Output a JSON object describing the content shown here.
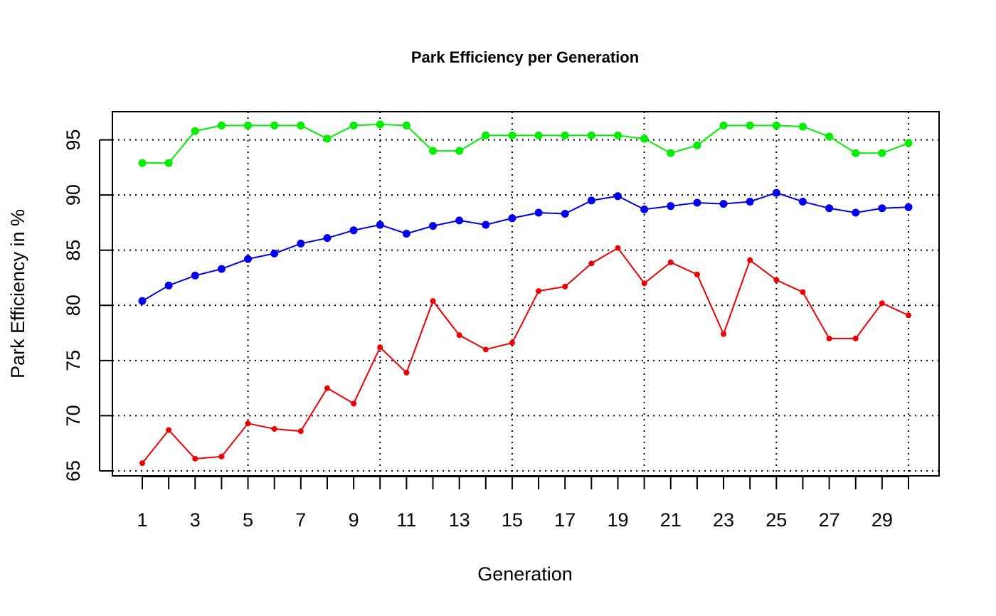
{
  "chart_data": {
    "type": "line",
    "title": "Park Efficiency per Generation",
    "xlabel": "Generation",
    "ylabel": "Park Efficiency in %",
    "xlim": [
      1,
      30
    ],
    "ylim": [
      65,
      97
    ],
    "x": [
      1,
      2,
      3,
      4,
      5,
      6,
      7,
      8,
      9,
      10,
      11,
      12,
      13,
      14,
      15,
      16,
      17,
      18,
      19,
      20,
      21,
      22,
      23,
      24,
      25,
      26,
      27,
      28,
      29,
      30
    ],
    "x_tick_values": [
      1,
      2,
      3,
      4,
      5,
      6,
      7,
      8,
      9,
      10,
      11,
      12,
      13,
      14,
      15,
      16,
      17,
      18,
      19,
      20,
      21,
      22,
      23,
      24,
      25,
      26,
      27,
      28,
      29,
      30
    ],
    "x_tick_labels": [
      "1",
      "3",
      "5",
      "7",
      "9",
      "11",
      "13",
      "15",
      "17",
      "19",
      "21",
      "23",
      "25",
      "27",
      "29"
    ],
    "x_tick_label_values": [
      1,
      3,
      5,
      7,
      9,
      11,
      13,
      15,
      17,
      19,
      21,
      23,
      25,
      27,
      29
    ],
    "y_ticks": [
      65,
      70,
      75,
      80,
      85,
      90,
      95
    ],
    "grid": true,
    "grid_x": [
      5,
      10,
      15,
      20,
      25,
      30
    ],
    "grid_y": [
      65,
      70,
      75,
      80,
      85,
      90,
      95
    ],
    "series": [
      {
        "color": "#00ee00",
        "values": [
          92.9,
          92.9,
          95.8,
          96.3,
          96.3,
          96.3,
          96.3,
          95.1,
          96.3,
          96.4,
          96.3,
          94.0,
          94.0,
          95.4,
          95.4,
          95.4,
          95.4,
          95.4,
          95.4,
          95.1,
          93.8,
          94.5,
          96.3,
          96.3,
          96.3,
          96.2,
          95.3,
          93.8,
          93.8,
          94.7
        ]
      },
      {
        "color": "#0000ee",
        "values": [
          80.4,
          81.8,
          82.7,
          83.3,
          84.2,
          84.7,
          85.6,
          86.1,
          86.8,
          87.3,
          86.5,
          87.2,
          87.7,
          87.3,
          87.9,
          88.4,
          88.3,
          89.5,
          89.9,
          88.7,
          89.0,
          89.3,
          89.2,
          89.4,
          90.2,
          89.4,
          88.8,
          88.4,
          88.8,
          88.9
        ]
      },
      {
        "color": "#ee0000",
        "values": [
          65.7,
          68.7,
          66.1,
          66.3,
          69.3,
          68.8,
          68.6,
          72.5,
          71.1,
          76.2,
          73.9,
          80.4,
          77.3,
          76.0,
          76.6,
          81.3,
          81.7,
          83.8,
          85.2,
          82.0,
          83.9,
          82.8,
          77.4,
          84.1,
          82.3,
          81.2,
          77.0,
          77.0,
          80.2,
          79.1
        ]
      }
    ]
  }
}
